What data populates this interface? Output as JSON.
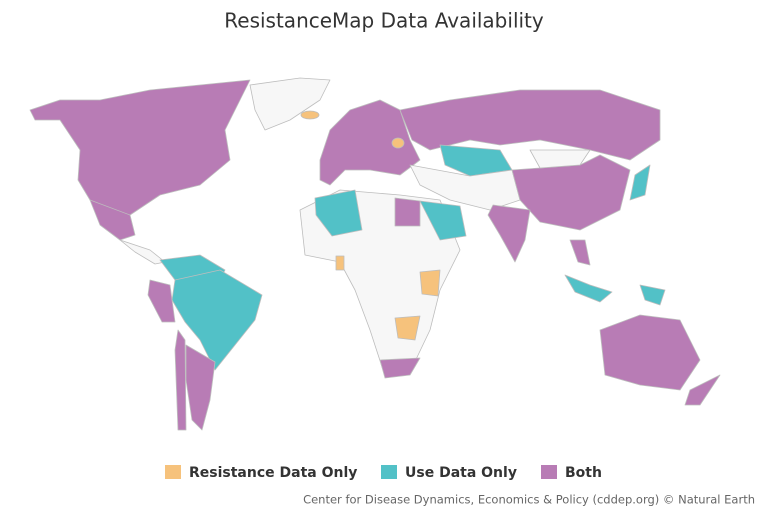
{
  "title": "ResistanceMap Data Availability",
  "legend": [
    {
      "label": "Resistance Data Only",
      "color": "#f6c27c"
    },
    {
      "label": "Use Data Only",
      "color": "#52c1c7"
    },
    {
      "label": "Both",
      "color": "#b87cb5"
    }
  ],
  "base_color": "#f7f7f7",
  "credit": "Center for Disease Dynamics, Economics & Policy (cddep.org) © Natural Earth"
}
